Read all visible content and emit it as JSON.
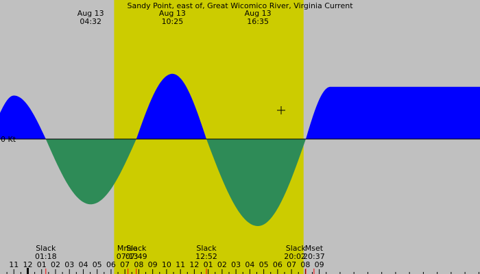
{
  "chart_data": {
    "type": "area",
    "title": "Sandy Point, east of, Great Wicomico River, Virginia Current",
    "ylabel": "0 Kt",
    "colors": {
      "background": "#c0c0c0",
      "daylight": "#cccc00",
      "flood": "#0000ff",
      "ebb": "#2e8b57",
      "tick_minor": "#000000",
      "tick_event": "#ff0000"
    },
    "ylim": [
      -2.0,
      1.6
    ],
    "hour_range": [
      -1.0,
      33.58
    ],
    "daylight": [
      7.22,
      20.87
    ],
    "hour_ticks": [
      {
        "h": 0,
        "label": "11"
      },
      {
        "h": 1,
        "label": "12"
      },
      {
        "h": 2,
        "label": "01"
      },
      {
        "h": 3,
        "label": "02"
      },
      {
        "h": 4,
        "label": "03"
      },
      {
        "h": 5,
        "label": "04"
      },
      {
        "h": 6,
        "label": "05"
      },
      {
        "h": 7,
        "label": "06"
      },
      {
        "h": 8,
        "label": "07"
      },
      {
        "h": 9,
        "label": "08"
      },
      {
        "h": 10,
        "label": "09"
      },
      {
        "h": 11,
        "label": "10"
      },
      {
        "h": 12,
        "label": "11"
      },
      {
        "h": 13,
        "label": "12"
      },
      {
        "h": 14,
        "label": "01"
      },
      {
        "h": 15,
        "label": "02"
      },
      {
        "h": 16,
        "label": "03"
      },
      {
        "h": 17,
        "label": "04"
      },
      {
        "h": 18,
        "label": "05"
      },
      {
        "h": 19,
        "label": "06"
      },
      {
        "h": 20,
        "label": "07"
      },
      {
        "h": 21,
        "label": "08"
      },
      {
        "h": 22,
        "label": "09"
      }
    ],
    "series": [
      {
        "time_h": 0.0,
        "value": 1.0
      },
      {
        "time_h": 2.3,
        "value": 0.0
      },
      {
        "time_h": 5.53,
        "value": -1.5
      },
      {
        "time_h": 8.82,
        "value": 0.0
      },
      {
        "time_h": 11.42,
        "value": 1.5
      },
      {
        "time_h": 13.87,
        "value": 0.0
      },
      {
        "time_h": 17.58,
        "value": -2.0
      },
      {
        "time_h": 21.03,
        "value": 0.0
      },
      {
        "time_h": 22.8,
        "value": 1.2
      }
    ],
    "top_labels": [
      {
        "h": 5.53,
        "date": "Aug 13",
        "time": "04:32"
      },
      {
        "h": 11.42,
        "date": "Aug 13",
        "time": "10:25"
      },
      {
        "h": 17.58,
        "date": "Aug 13",
        "time": "16:35"
      }
    ],
    "bottom_labels": [
      {
        "h": 2.3,
        "event": "Slack",
        "time": "01:18",
        "anchor": "middle"
      },
      {
        "h": 8.22,
        "event": "Mrise",
        "time": "07:13",
        "anchor": "middle"
      },
      {
        "h": 8.82,
        "event": "Slack",
        "time": "07:49",
        "anchor": "middle"
      },
      {
        "h": 13.87,
        "event": "Slack",
        "time": "12:52",
        "anchor": "middle"
      },
      {
        "h": 21.03,
        "event": "Slack",
        "time": "20:02",
        "anchor": "end"
      },
      {
        "h": 21.62,
        "event": "Mset",
        "time": "20:37",
        "anchor": "middle"
      }
    ],
    "event_marks": [
      2.3,
      8.22,
      8.82,
      13.87,
      21.03,
      21.62
    ]
  }
}
